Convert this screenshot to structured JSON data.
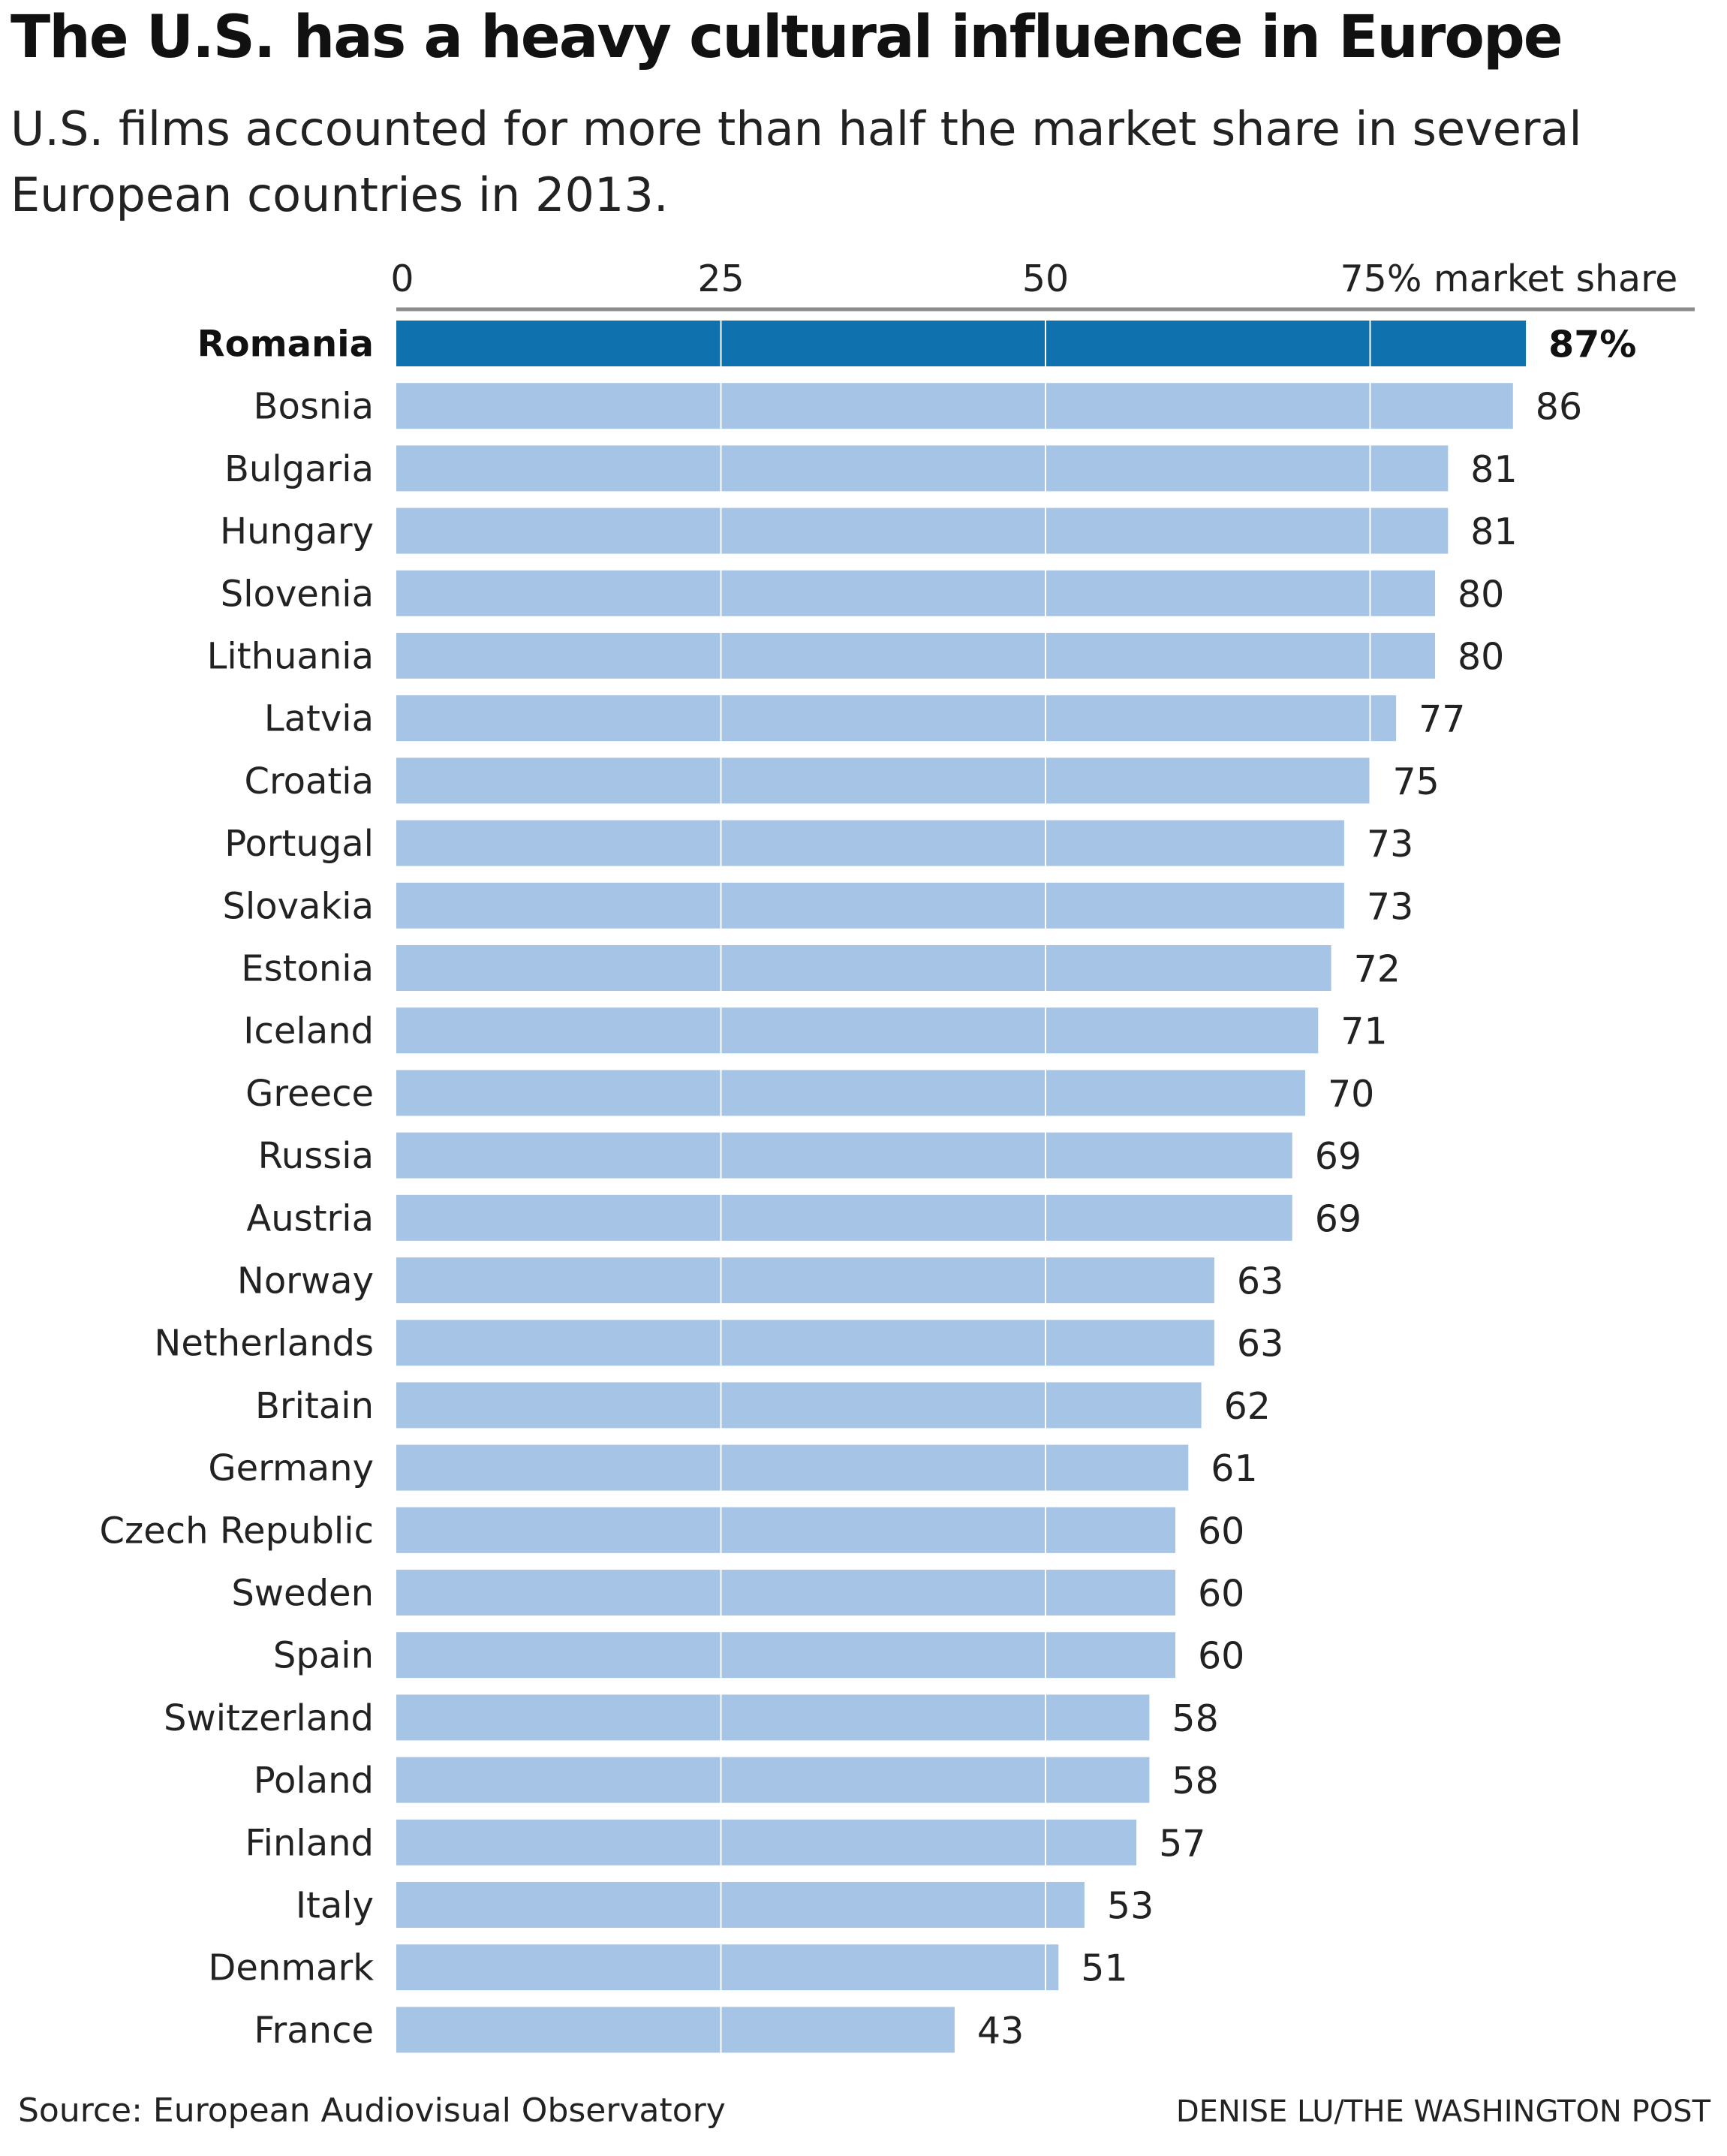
{
  "header": {
    "title": "The U.S. has a heavy cultural influence in Europe",
    "subtitle": "U.S. films accounted for more than half the market share in several European countries in 2013."
  },
  "footer": {
    "source": "Source: European Audiovisual Observatory",
    "credit": "DENISE LU/THE WASHINGTON POST"
  },
  "colors": {
    "highlight_bar": "#0f72ae",
    "bar": "#a6c4e6",
    "gridline": "#ffffff",
    "axis_line": "#8c8c8c",
    "text": "#222222"
  },
  "chart_data": {
    "type": "bar",
    "orientation": "horizontal",
    "title": "The U.S. has a heavy cultural influence in Europe",
    "subtitle": "U.S. films accounted for more than half the market share in several European countries in 2013.",
    "xlim": [
      0,
      100
    ],
    "ticks": [
      {
        "value": 0,
        "label": "0"
      },
      {
        "value": 25,
        "label": "25"
      },
      {
        "value": 50,
        "label": "50"
      },
      {
        "value": 75,
        "label": "75% market share"
      }
    ],
    "grid": true,
    "highlight": "Romania",
    "categories": [
      "Romania",
      "Bosnia",
      "Bulgaria",
      "Hungary",
      "Slovenia",
      "Lithuania",
      "Latvia",
      "Croatia",
      "Portugal",
      "Slovakia",
      "Estonia",
      "Iceland",
      "Greece",
      "Russia",
      "Austria",
      "Norway",
      "Netherlands",
      "Britain",
      "Germany",
      "Czech Republic",
      "Sweden",
      "Spain",
      "Switzerland",
      "Poland",
      "Finland",
      "Italy",
      "Denmark",
      "France"
    ],
    "values": [
      87,
      86,
      81,
      81,
      80,
      80,
      77,
      75,
      73,
      73,
      72,
      71,
      70,
      69,
      69,
      63,
      63,
      62,
      61,
      60,
      60,
      60,
      58,
      58,
      57,
      53,
      51,
      43
    ],
    "value_labels": [
      "87%",
      "86",
      "81",
      "81",
      "80",
      "80",
      "77",
      "75",
      "73",
      "73",
      "72",
      "71",
      "70",
      "69",
      "69",
      "63",
      "63",
      "62",
      "61",
      "60",
      "60",
      "60",
      "58",
      "58",
      "57",
      "53",
      "51",
      "43"
    ]
  }
}
